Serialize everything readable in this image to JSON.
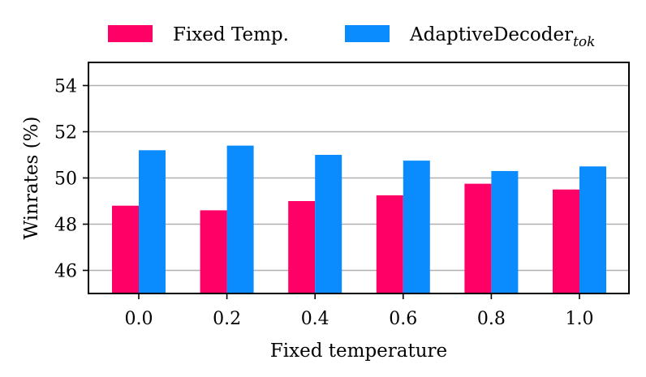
{
  "chart_data": {
    "type": "bar",
    "title": "",
    "xlabel": "Fixed temperature",
    "ylabel": "Winrates (%)",
    "ylim": [
      45,
      55
    ],
    "yticks": [
      46,
      48,
      50,
      52,
      54
    ],
    "ytick_labels": [
      "46",
      "48",
      "50",
      "52",
      "54"
    ],
    "grid": true,
    "legend_position": "top",
    "categories": [
      "0.0",
      "0.2",
      "0.4",
      "0.6",
      "0.8",
      "1.0"
    ],
    "series": [
      {
        "name": "Fixed Temp.",
        "color": "#ff0066",
        "values": [
          48.8,
          48.6,
          49.0,
          49.25,
          49.75,
          49.5
        ]
      },
      {
        "name": "AdaptiveDecoder",
        "name_subscript": "tok",
        "color": "#0a8cff",
        "values": [
          51.2,
          51.4,
          51.0,
          50.75,
          50.3,
          50.5
        ]
      }
    ]
  }
}
